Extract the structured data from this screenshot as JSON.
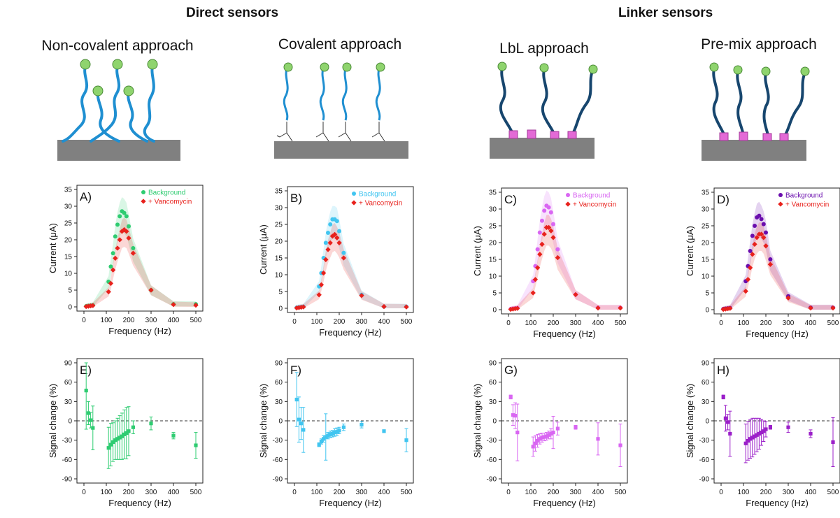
{
  "headings": {
    "left": "Direct sensors",
    "right": "Linker sensors"
  },
  "approaches": [
    "Non-covalent approach",
    "Covalent approach",
    "LbL approach",
    "Pre-mix approach"
  ],
  "colors": {
    "green": "#2ecc71",
    "blue": "#41c5f0",
    "pink": "#d966f2",
    "purple": "#6a0dad",
    "red": "#e8211c",
    "mol": "#8fd46e",
    "strand": "#1f8fd1",
    "linker": "#e36ad6"
  },
  "chart_data": [
    {
      "type": "line",
      "panel": "A)",
      "xlabel": "Frequency (Hz)",
      "ylabel": "Current (μA)",
      "ylim": [
        0,
        35
      ],
      "xlim": [
        0,
        500
      ],
      "xticks": [
        0,
        100,
        200,
        300,
        400,
        500
      ],
      "yticks": [
        0,
        5,
        10,
        15,
        20,
        25,
        30,
        35
      ],
      "series": [
        {
          "name": "Background",
          "color": "#2ecc71",
          "marker": "circle",
          "x": [
            10,
            20,
            30,
            40,
            110,
            120,
            130,
            140,
            150,
            160,
            170,
            180,
            190,
            200,
            220,
            300,
            400,
            500
          ],
          "y": [
            0.2,
            0.3,
            0.4,
            0.5,
            7.5,
            12,
            16,
            21,
            24.5,
            27,
            28.5,
            28,
            27,
            24,
            17.5,
            5,
            0.8,
            0.8
          ]
        },
        {
          "name": "+ Vancomycin",
          "color": "#e8211c",
          "marker": "diamond",
          "x": [
            10,
            20,
            30,
            40,
            110,
            120,
            130,
            140,
            150,
            160,
            170,
            180,
            190,
            200,
            220,
            300,
            400,
            500
          ],
          "y": [
            0.1,
            0.2,
            0.3,
            0.4,
            4.5,
            7,
            11,
            14.5,
            17.5,
            20,
            22.5,
            23,
            22.5,
            20.5,
            16,
            5,
            0.7,
            0.5
          ]
        }
      ]
    },
    {
      "type": "line",
      "panel": "B)",
      "xlabel": "Frequency (Hz)",
      "ylabel": "Current (μA)",
      "ylim": [
        0,
        35
      ],
      "xlim": [
        0,
        500
      ],
      "xticks": [
        0,
        100,
        200,
        300,
        400,
        500
      ],
      "yticks": [
        0,
        5,
        10,
        15,
        20,
        25,
        30,
        35
      ],
      "series": [
        {
          "name": "Background",
          "color": "#41c5f0",
          "marker": "circle",
          "x": [
            10,
            20,
            30,
            40,
            110,
            120,
            130,
            140,
            150,
            160,
            170,
            180,
            190,
            200,
            220,
            300,
            400,
            500
          ],
          "y": [
            0.2,
            0.3,
            0.4,
            0.5,
            6.5,
            10.5,
            15,
            19.5,
            22.5,
            25,
            26.5,
            26.5,
            26,
            23,
            16.5,
            4,
            0.5,
            0.5
          ]
        },
        {
          "name": "+ Vancomycin",
          "color": "#e8211c",
          "marker": "diamond",
          "x": [
            10,
            20,
            30,
            40,
            110,
            120,
            130,
            140,
            150,
            160,
            170,
            180,
            190,
            200,
            220,
            300,
            400,
            500
          ],
          "y": [
            0.1,
            0.2,
            0.3,
            0.4,
            4,
            7,
            10.5,
            14.5,
            17.5,
            19.5,
            21.5,
            22,
            21,
            19.5,
            15,
            3.8,
            0.5,
            0.4
          ]
        }
      ]
    },
    {
      "type": "line",
      "panel": "C)",
      "xlabel": "Frequency (Hz)",
      "ylabel": "Current (μA)",
      "ylim": [
        0,
        35
      ],
      "xlim": [
        0,
        500
      ],
      "xticks": [
        0,
        100,
        200,
        300,
        400,
        500
      ],
      "yticks": [
        0,
        5,
        10,
        15,
        20,
        25,
        30,
        35
      ],
      "series": [
        {
          "name": "Background",
          "color": "#d966f2",
          "marker": "circle",
          "x": [
            10,
            20,
            30,
            40,
            110,
            120,
            130,
            140,
            150,
            160,
            170,
            180,
            190,
            200,
            220,
            300,
            400,
            500
          ],
          "y": [
            0.2,
            0.3,
            0.4,
            0.5,
            8.5,
            13,
            18,
            23,
            26.5,
            29.5,
            31,
            30.5,
            29,
            25.5,
            18,
            4.5,
            0.6,
            0.6
          ]
        },
        {
          "name": "+ Vancomycin",
          "color": "#e8211c",
          "marker": "diamond",
          "x": [
            10,
            20,
            30,
            40,
            110,
            120,
            130,
            140,
            150,
            160,
            170,
            180,
            190,
            200,
            220,
            300,
            400,
            500
          ],
          "y": [
            0.1,
            0.2,
            0.3,
            0.4,
            5,
            9,
            12.5,
            16.5,
            19.5,
            22.5,
            24.5,
            24.5,
            23.5,
            21.5,
            15.5,
            4.5,
            0.5,
            0.5
          ]
        }
      ]
    },
    {
      "type": "line",
      "panel": "D)",
      "xlabel": "Frequency (Hz)",
      "ylabel": "Current (μA)",
      "ylim": [
        0,
        35
      ],
      "xlim": [
        0,
        500
      ],
      "xticks": [
        0,
        100,
        200,
        300,
        400,
        500
      ],
      "yticks": [
        0,
        5,
        10,
        15,
        20,
        25,
        30,
        35
      ],
      "series": [
        {
          "name": "Background",
          "color": "#6a0dad",
          "marker": "circle",
          "x": [
            10,
            20,
            30,
            40,
            110,
            120,
            130,
            140,
            150,
            160,
            170,
            180,
            190,
            200,
            220,
            300,
            400,
            500
          ],
          "y": [
            0.2,
            0.3,
            0.4,
            0.5,
            8.5,
            13,
            17.5,
            22,
            25,
            27.5,
            28,
            27,
            25.5,
            23,
            15,
            4,
            0.6,
            0.6
          ]
        },
        {
          "name": "+ Vancomycin",
          "color": "#e8211c",
          "marker": "diamond",
          "x": [
            10,
            20,
            30,
            40,
            110,
            120,
            130,
            140,
            150,
            160,
            170,
            180,
            190,
            200,
            220,
            300,
            400,
            500
          ],
          "y": [
            0.1,
            0.2,
            0.3,
            0.4,
            5.5,
            9,
            12.5,
            16.5,
            19.5,
            21.5,
            22.5,
            22.5,
            21.5,
            19,
            13.5,
            3.5,
            0.5,
            0.5
          ]
        }
      ]
    },
    {
      "type": "scatter",
      "panel": "E)",
      "xlabel": "Frequency (Hz)",
      "ylabel": "Signal change (%)",
      "ylim": [
        -90,
        90
      ],
      "xlim": [
        0,
        500
      ],
      "xticks": [
        0,
        100,
        200,
        300,
        400,
        500
      ],
      "yticks": [
        -90,
        -60,
        -30,
        0,
        30,
        60,
        90
      ],
      "reference_line": 0,
      "color": "#2ecc71",
      "x": [
        10,
        20,
        30,
        40,
        110,
        120,
        130,
        140,
        150,
        160,
        170,
        180,
        190,
        200,
        220,
        300,
        400,
        500
      ],
      "y": [
        47,
        12,
        1,
        -11,
        -42,
        -37,
        -33,
        -30,
        -28,
        -26,
        -24,
        -21,
        -19,
        -16,
        -10,
        -4,
        -23,
        -38
      ],
      "err": [
        60,
        18,
        12,
        34,
        32,
        33,
        30,
        30,
        32,
        34,
        36,
        38,
        40,
        38,
        10,
        10,
        5,
        20
      ]
    },
    {
      "type": "scatter",
      "panel": "F)",
      "xlabel": "Frequency (Hz)",
      "ylabel": "Signal change (%)",
      "ylim": [
        -90,
        90
      ],
      "xlim": [
        0,
        500
      ],
      "xticks": [
        0,
        100,
        200,
        300,
        400,
        500
      ],
      "yticks": [
        -90,
        -60,
        -30,
        0,
        30,
        60,
        90
      ],
      "reference_line": 0,
      "color": "#41c5f0",
      "x": [
        10,
        20,
        30,
        40,
        110,
        120,
        130,
        140,
        150,
        160,
        170,
        180,
        190,
        200,
        220,
        300,
        400,
        500
      ],
      "y": [
        33,
        2,
        -4,
        -14,
        -37,
        -32,
        -28,
        -25,
        -23,
        -21,
        -20,
        -18,
        -17,
        -15,
        -10,
        -6,
        -16,
        -30
      ],
      "err": [
        42,
        35,
        25,
        35,
        3,
        4,
        5,
        36,
        5,
        5,
        5,
        6,
        6,
        5,
        5,
        5,
        2,
        18
      ]
    },
    {
      "type": "scatter",
      "panel": "G)",
      "xlabel": "Frequency (Hz)",
      "ylabel": "Signal change (%)",
      "ylim": [
        -90,
        90
      ],
      "xlim": [
        0,
        500
      ],
      "xticks": [
        0,
        100,
        200,
        300,
        400,
        500
      ],
      "yticks": [
        -90,
        -60,
        -30,
        0,
        30,
        60,
        90
      ],
      "reference_line": 0,
      "color": "#d966f2",
      "x": [
        10,
        20,
        30,
        40,
        110,
        120,
        130,
        140,
        150,
        160,
        170,
        180,
        190,
        200,
        220,
        300,
        400,
        500
      ],
      "y": [
        37,
        9,
        8,
        -18,
        -40,
        -35,
        -31,
        -28,
        -26,
        -25,
        -24,
        -22,
        -20,
        -18,
        -12,
        -10,
        -28,
        -38
      ],
      "err": [
        3,
        16,
        20,
        44,
        15,
        12,
        10,
        8,
        7,
        6,
        6,
        6,
        8,
        25,
        10,
        3,
        25,
        33
      ]
    },
    {
      "type": "scatter",
      "panel": "H)",
      "xlabel": "Frequency (Hz)",
      "ylabel": "Signal change (%)",
      "ylim": [
        -90,
        90
      ],
      "xlim": [
        0,
        500
      ],
      "xticks": [
        0,
        100,
        200,
        300,
        400,
        500
      ],
      "yticks": [
        -90,
        -60,
        -30,
        0,
        30,
        60,
        90
      ],
      "reference_line": 0,
      "color": "#9b1fc9",
      "x": [
        10,
        20,
        30,
        40,
        110,
        120,
        130,
        140,
        150,
        160,
        170,
        180,
        190,
        200,
        220,
        300,
        400,
        500
      ],
      "y": [
        37,
        4,
        -2,
        -20,
        -35,
        -31,
        -28,
        -26,
        -24,
        -22,
        -20,
        -18,
        -16,
        -13,
        -10,
        -10,
        -20,
        -33
      ],
      "err": [
        3,
        20,
        12,
        35,
        30,
        30,
        30,
        30,
        28,
        26,
        24,
        20,
        16,
        12,
        3,
        8,
        6,
        38
      ]
    }
  ]
}
